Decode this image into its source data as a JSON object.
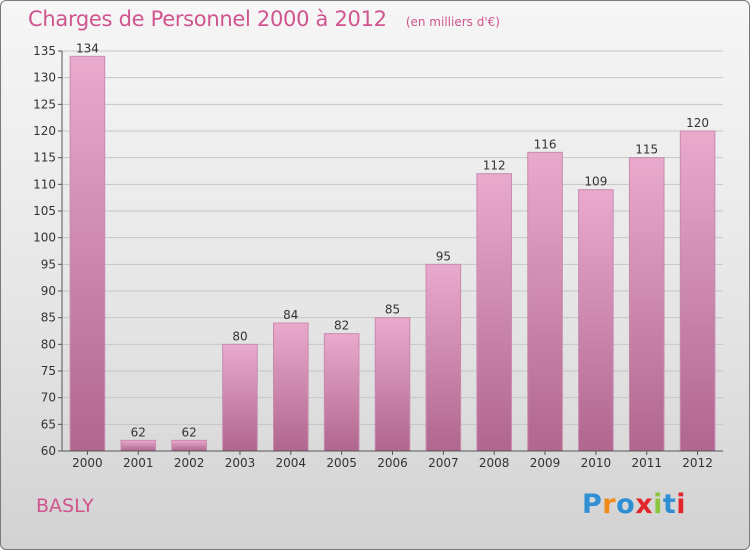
{
  "header": {
    "title": "Charges de Personnel 2000 à 2012",
    "subtitle": "(en milliers d'€)"
  },
  "footer": {
    "place": "BASLY",
    "logo": "Proxiti",
    "logo_colors": [
      "#2f8fd4",
      "#f08a1c",
      "#2f8fd4",
      "#e2262b",
      "#8cc63f",
      "#2f8fd4",
      "#e2262b"
    ]
  },
  "colors": {
    "bar_light": "#e9aacd",
    "bar_dark": "#b0668e",
    "grid": "#c6c6c6",
    "text": "#333333",
    "accent": "#d0548e"
  },
  "chart_data": {
    "type": "bar",
    "categories": [
      "2000",
      "2001",
      "2002",
      "2003",
      "2004",
      "2005",
      "2006",
      "2007",
      "2008",
      "2009",
      "2010",
      "2011",
      "2012"
    ],
    "values": [
      134,
      62,
      62,
      80,
      84,
      82,
      85,
      95,
      112,
      116,
      109,
      115,
      120
    ],
    "title": "Charges de Personnel 2000 à 2012",
    "subtitle": "(en milliers d'€)",
    "ylim": [
      60,
      135
    ],
    "yticks": [
      60,
      65,
      70,
      75,
      80,
      85,
      90,
      95,
      100,
      105,
      110,
      115,
      120,
      125,
      130,
      135
    ],
    "grid": true
  }
}
